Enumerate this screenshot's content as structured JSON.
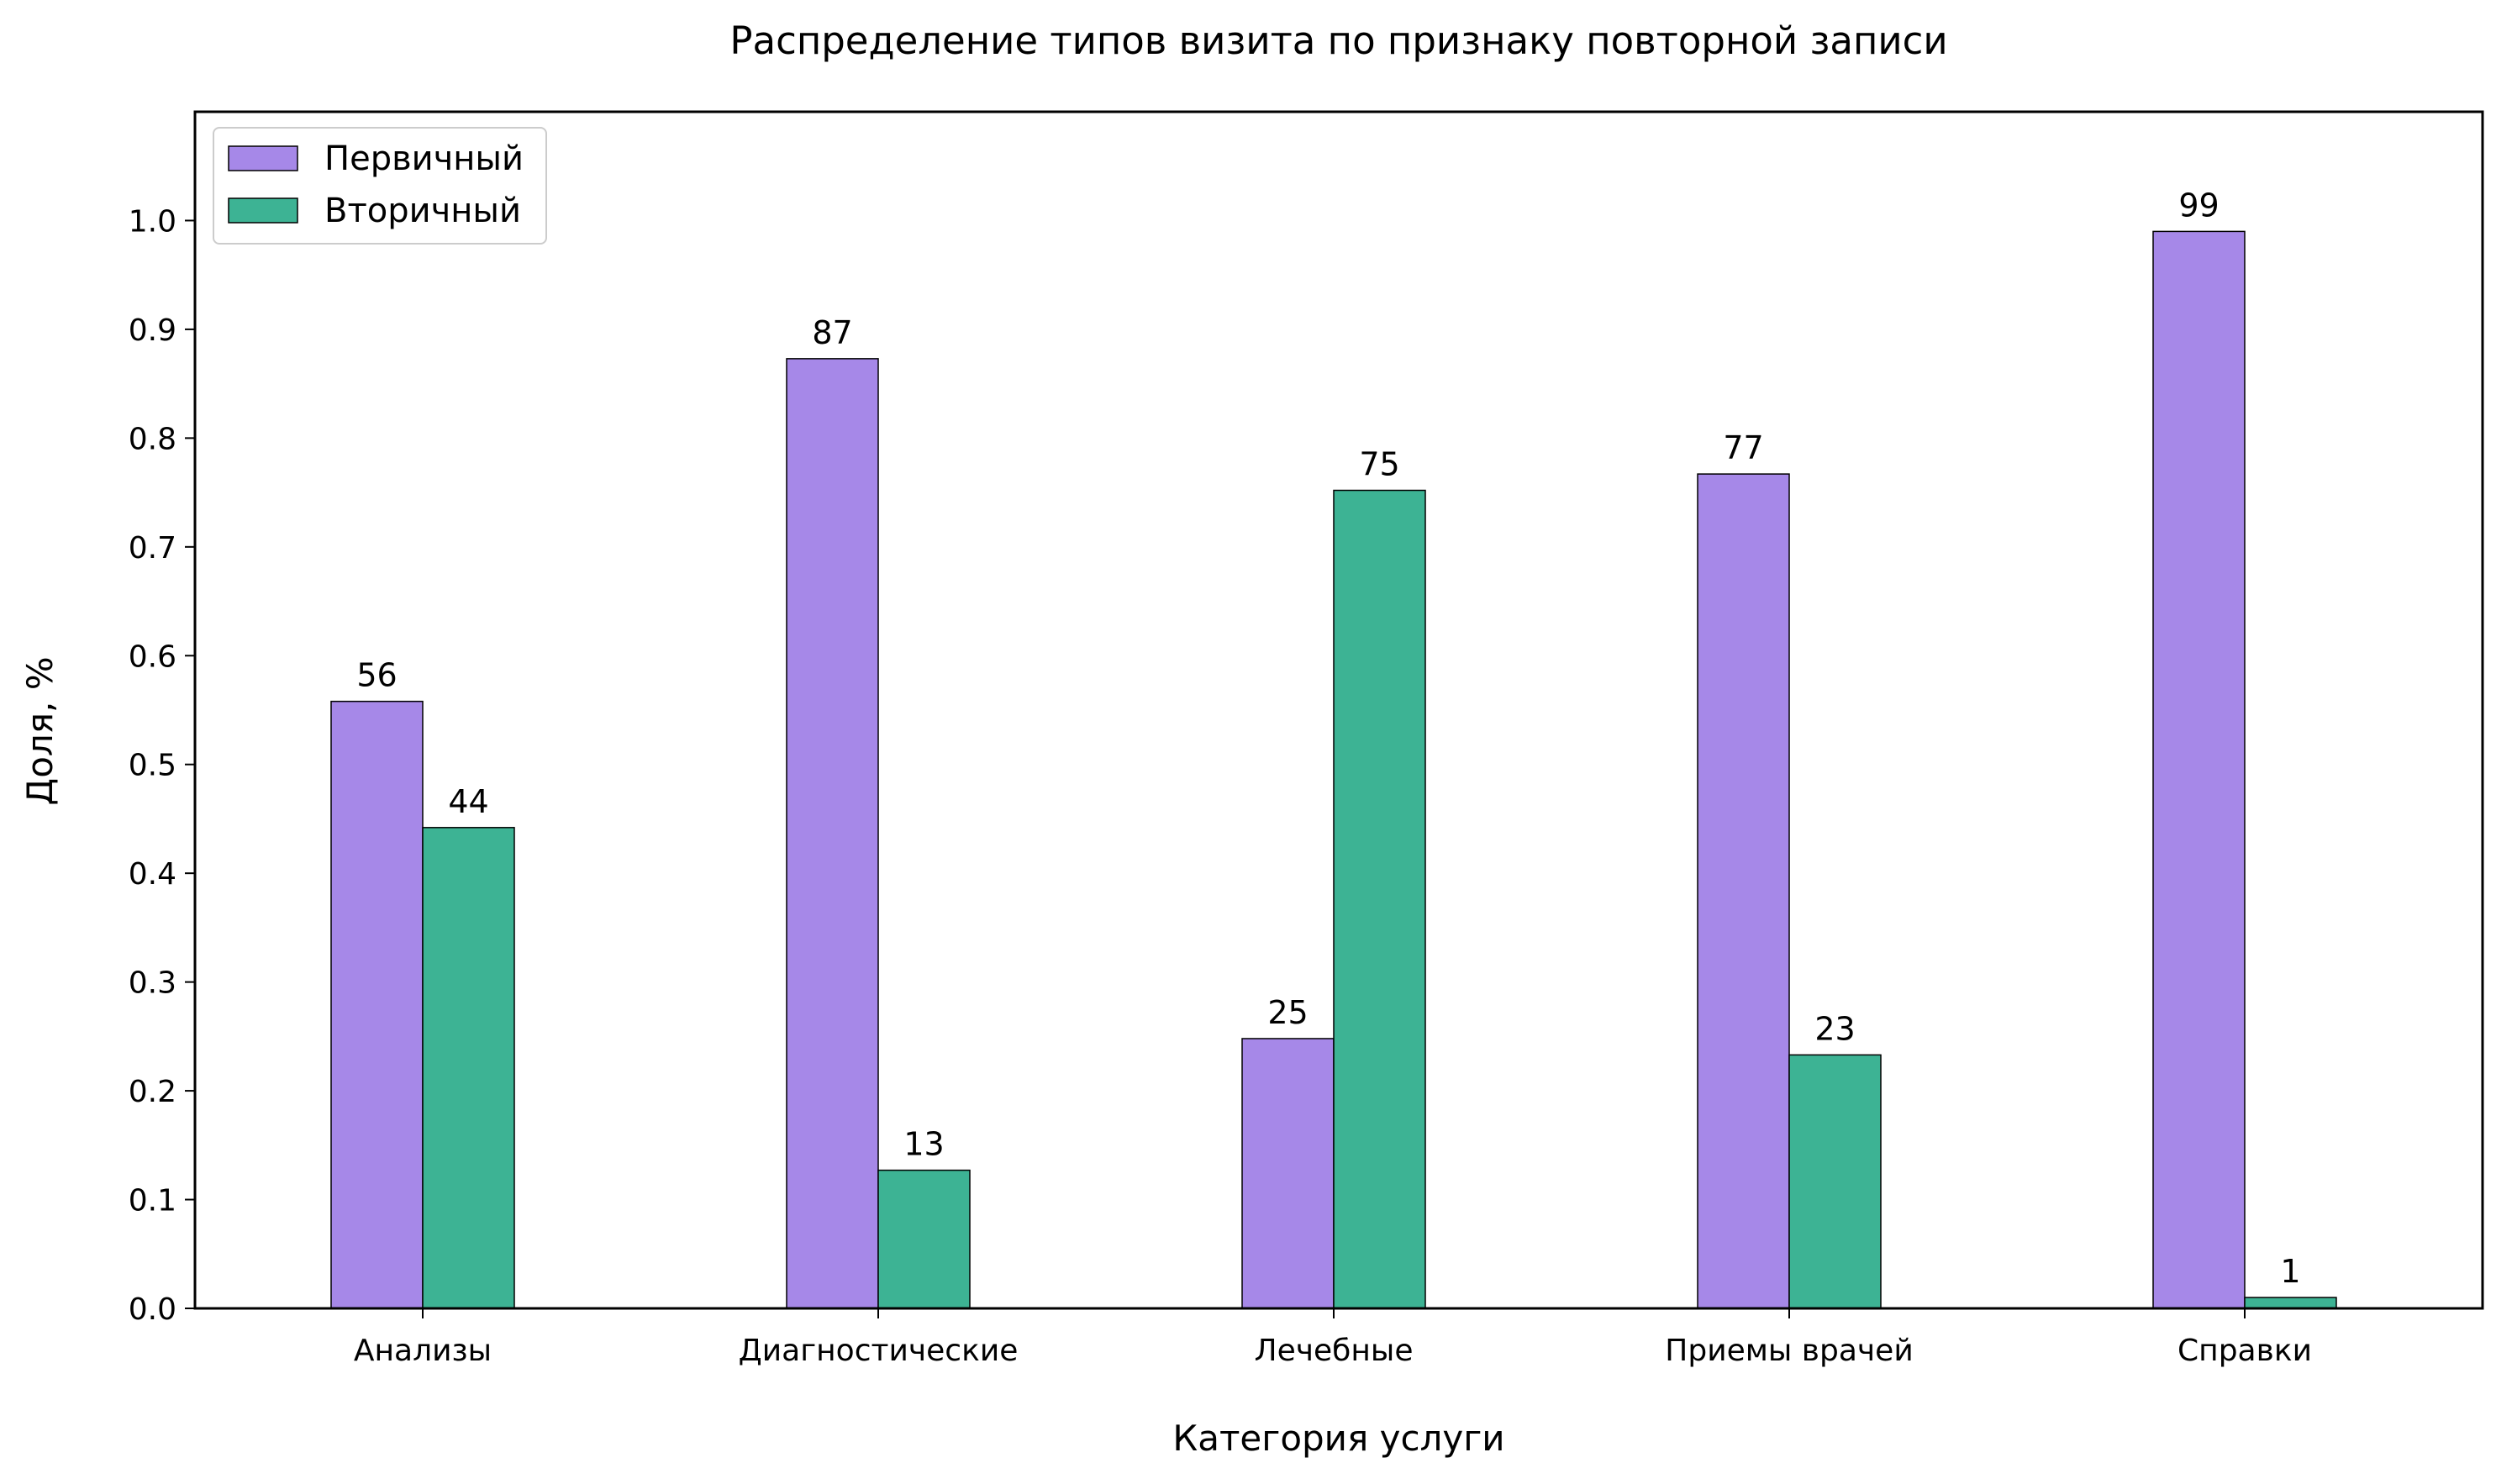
{
  "chart_data": {
    "type": "bar",
    "title": "Распределение типов визита по признаку повторной записи",
    "xlabel": "Категория услуги",
    "ylabel": "Доля, %",
    "categories": [
      "Анализы",
      "Диагностические",
      "Лечебные",
      "Приемы врачей",
      "Справки"
    ],
    "series": [
      {
        "name": "Первичный",
        "color": "#a688e8",
        "values": [
          0.558,
          0.873,
          0.248,
          0.767,
          0.99
        ],
        "labels": [
          "56",
          "87",
          "25",
          "77",
          "99"
        ]
      },
      {
        "name": "Вторичный",
        "color": "#3db394",
        "values": [
          0.442,
          0.127,
          0.752,
          0.233,
          0.01
        ],
        "labels": [
          "44",
          "13",
          "75",
          "23",
          "1"
        ]
      }
    ],
    "ylim": [
      0,
      1.1
    ],
    "yticks": [
      "0.0",
      "0.1",
      "0.2",
      "0.3",
      "0.4",
      "0.5",
      "0.6",
      "0.7",
      "0.8",
      "0.9",
      "1.0"
    ],
    "grid": false,
    "legend": "top-left"
  }
}
